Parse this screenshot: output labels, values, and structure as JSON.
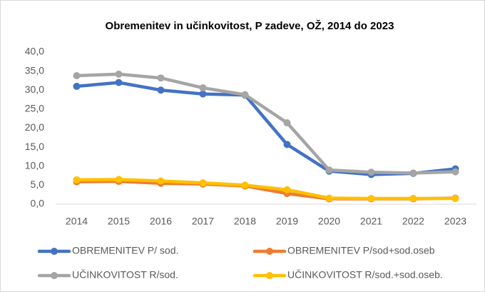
{
  "chart_data": {
    "type": "line",
    "title": "Obremenitev  in učinkovitost, P zadeve, OŽ, 2014 do 2023",
    "categories": [
      "2014",
      "2015",
      "2016",
      "2017",
      "2018",
      "2019",
      "2020",
      "2021",
      "2022",
      "2023"
    ],
    "series": [
      {
        "name": "OBREMENITEV P/ sod.",
        "color": "#4472c4",
        "values": [
          31.0,
          32.0,
          30.0,
          29.0,
          28.7,
          15.7,
          8.7,
          7.8,
          8.1,
          9.3
        ]
      },
      {
        "name": "OBREMENITEV P/sod+sod.oseb",
        "color": "#ed7d31",
        "values": [
          5.9,
          6.0,
          5.5,
          5.3,
          4.8,
          2.8,
          1.4,
          1.4,
          1.4,
          1.6
        ]
      },
      {
        "name": "UČINKOVITOST R/sod.",
        "color": "#a5a5a5",
        "values": [
          33.8,
          34.2,
          33.2,
          30.6,
          28.8,
          21.4,
          9.0,
          8.4,
          8.2,
          8.5
        ]
      },
      {
        "name": "UČINKOVITOST R/sod.+sod.oseb.",
        "color": "#ffc000",
        "values": [
          6.4,
          6.5,
          6.1,
          5.6,
          5.0,
          3.8,
          1.6,
          1.5,
          1.5,
          1.5
        ]
      }
    ],
    "ylim": [
      0,
      40
    ],
    "yticks": [
      {
        "value": 0,
        "label": "0,0"
      },
      {
        "value": 5,
        "label": "5,0"
      },
      {
        "value": 10,
        "label": "10,0"
      },
      {
        "value": 15,
        "label": "15,0"
      },
      {
        "value": 20,
        "label": "20,0"
      },
      {
        "value": 25,
        "label": "25,0"
      },
      {
        "value": 30,
        "label": "30,0"
      },
      {
        "value": 35,
        "label": "35,0"
      },
      {
        "value": 40,
        "label": "40,0"
      }
    ],
    "grid": false,
    "legend": "bottom"
  }
}
